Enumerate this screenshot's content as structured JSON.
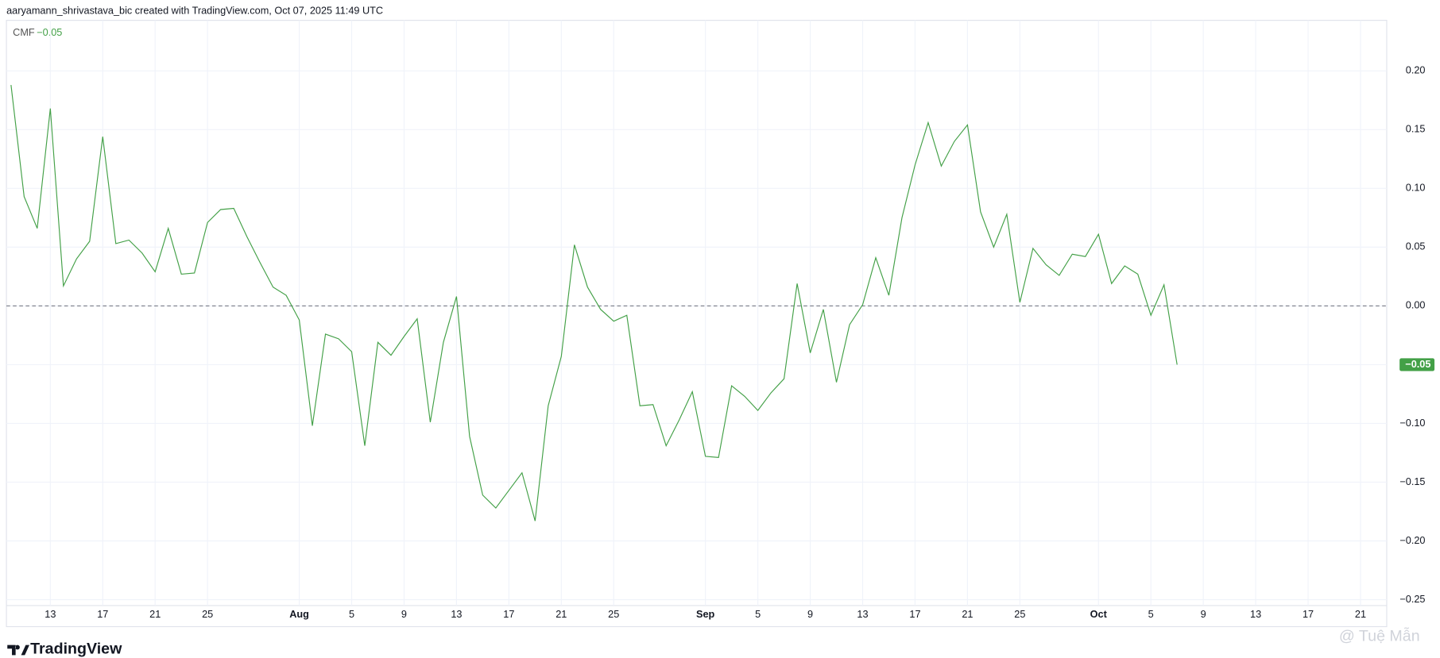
{
  "header": {
    "text": "aaryamann_shrivastava_bic created with TradingView.com, Oct 07, 2025 11:49 UTC"
  },
  "footer": {
    "brand": "TradingView",
    "watermark": "@ Tuệ Mẫn"
  },
  "chart_data": {
    "type": "line",
    "x": [
      "Jul 10",
      "Jul 11",
      "Jul 12",
      "Jul 13",
      "Jul 14",
      "Jul 15",
      "Jul 16",
      "Jul 17",
      "Jul 18",
      "Jul 19",
      "Jul 20",
      "Jul 21",
      "Jul 22",
      "Jul 23",
      "Jul 24",
      "Jul 25",
      "Jul 26",
      "Jul 27",
      "Jul 28",
      "Jul 29",
      "Jul 30",
      "Jul 31",
      "Aug 1",
      "Aug 2",
      "Aug 3",
      "Aug 4",
      "Aug 5",
      "Aug 6",
      "Aug 7",
      "Aug 8",
      "Aug 9",
      "Aug 10",
      "Aug 11",
      "Aug 12",
      "Aug 13",
      "Aug 14",
      "Aug 15",
      "Aug 16",
      "Aug 17",
      "Aug 18",
      "Aug 19",
      "Aug 20",
      "Aug 21",
      "Aug 22",
      "Aug 23",
      "Aug 24",
      "Aug 25",
      "Aug 26",
      "Aug 27",
      "Aug 28",
      "Aug 29",
      "Aug 30",
      "Aug 31",
      "Sep 1",
      "Sep 2",
      "Sep 3",
      "Sep 4",
      "Sep 5",
      "Sep 6",
      "Sep 7",
      "Sep 8",
      "Sep 9",
      "Sep 10",
      "Sep 11",
      "Sep 12",
      "Sep 13",
      "Sep 14",
      "Sep 15",
      "Sep 16",
      "Sep 17",
      "Sep 18",
      "Sep 19",
      "Sep 20",
      "Sep 21",
      "Sep 22",
      "Sep 23",
      "Sep 24",
      "Sep 25",
      "Sep 26",
      "Sep 27",
      "Sep 28",
      "Sep 29",
      "Sep 30",
      "Oct 1",
      "Oct 2",
      "Oct 3",
      "Oct 4",
      "Oct 5",
      "Oct 6",
      "Oct 7"
    ],
    "series": [
      {
        "name": "CMF",
        "color": "#43a047",
        "values": [
          0.188,
          0.093,
          0.066,
          0.168,
          0.017,
          0.04,
          0.055,
          0.144,
          0.053,
          0.056,
          0.045,
          0.029,
          0.066,
          0.027,
          0.028,
          0.071,
          0.082,
          0.083,
          0.059,
          0.037,
          0.016,
          0.009,
          -0.012,
          -0.102,
          -0.024,
          -0.028,
          -0.039,
          -0.119,
          -0.031,
          -0.042,
          -0.026,
          -0.011,
          -0.099,
          -0.031,
          0.008,
          -0.111,
          -0.161,
          -0.172,
          -0.157,
          -0.142,
          -0.183,
          -0.085,
          -0.043,
          0.052,
          0.016,
          -0.003,
          -0.013,
          -0.008,
          -0.085,
          -0.084,
          -0.119,
          -0.097,
          -0.073,
          -0.128,
          -0.129,
          -0.068,
          -0.077,
          -0.089,
          -0.074,
          -0.062,
          0.019,
          -0.04,
          -0.003,
          -0.065,
          -0.016,
          0.001,
          0.041,
          0.009,
          0.075,
          0.12,
          0.156,
          0.119,
          0.14,
          0.154,
          0.08,
          0.05,
          0.078,
          0.003,
          0.049,
          0.035,
          0.026,
          0.044,
          0.042,
          0.061,
          0.019,
          0.034,
          0.027,
          -0.008,
          0.018,
          -0.05
        ],
        "last_value_label": "−0.05"
      }
    ],
    "xlim": [
      "Jul 10",
      "Oct 23"
    ],
    "xticks": [
      {
        "value": "Jul 13",
        "label": "13"
      },
      {
        "value": "Jul 17",
        "label": "17"
      },
      {
        "value": "Jul 21",
        "label": "21"
      },
      {
        "value": "Jul 25",
        "label": "25"
      },
      {
        "value": "Aug 1",
        "label": "Aug"
      },
      {
        "value": "Aug 5",
        "label": "5"
      },
      {
        "value": "Aug 9",
        "label": "9"
      },
      {
        "value": "Aug 13",
        "label": "13"
      },
      {
        "value": "Aug 17",
        "label": "17"
      },
      {
        "value": "Aug 21",
        "label": "21"
      },
      {
        "value": "Aug 25",
        "label": "25"
      },
      {
        "value": "Sep 1",
        "label": "Sep"
      },
      {
        "value": "Sep 5",
        "label": "5"
      },
      {
        "value": "Sep 9",
        "label": "9"
      },
      {
        "value": "Sep 13",
        "label": "13"
      },
      {
        "value": "Sep 17",
        "label": "17"
      },
      {
        "value": "Sep 21",
        "label": "21"
      },
      {
        "value": "Sep 25",
        "label": "25"
      },
      {
        "value": "Oct 1",
        "label": "Oct"
      },
      {
        "value": "Oct 5",
        "label": "5"
      },
      {
        "value": "Oct 9",
        "label": "9"
      },
      {
        "value": "Oct 13",
        "label": "13"
      },
      {
        "value": "Oct 17",
        "label": "17"
      },
      {
        "value": "Oct 21",
        "label": "21"
      }
    ],
    "ylim": [
      -0.255,
      0.243
    ],
    "yticks": [
      {
        "value": 0.2,
        "label": "0.20"
      },
      0.15,
      {
        "value": 0.1,
        "label": "0.10"
      },
      0.05,
      {
        "value": 0,
        "label": "0.00"
      },
      {
        "value": -0.05,
        "label": "−0.05"
      },
      {
        "value": -0.1,
        "label": "−0.10"
      },
      {
        "value": -0.15,
        "label": "−0.15"
      },
      {
        "value": -0.2,
        "label": "−0.20"
      },
      {
        "value": -0.25,
        "label": "−0.25"
      }
    ],
    "grid": true,
    "baseline_dashed": true
  }
}
